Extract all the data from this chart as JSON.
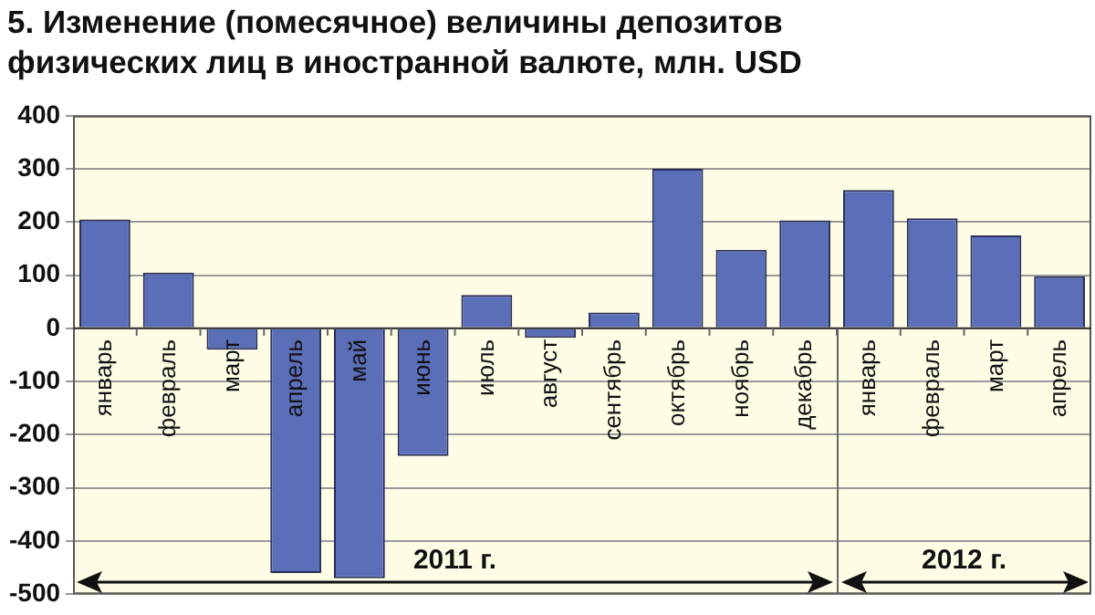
{
  "chart_data": {
    "type": "bar",
    "title": "5. Изменение (помесячное) величины депозитов физических лиц в иностранной валюте, млн. USD",
    "categories": [
      "январь",
      "февраль",
      "март",
      "апрель",
      "май",
      "июнь",
      "июль",
      "август",
      "сентябрь",
      "октябрь",
      "ноябрь",
      "декабрь",
      "январь",
      "февраль",
      "март",
      "апрель"
    ],
    "values": [
      205,
      105,
      -40,
      -460,
      -470,
      -240,
      63,
      -18,
      30,
      300,
      148,
      203,
      260,
      207,
      175,
      98
    ],
    "color": "#5b6fb8",
    "ylim": [
      -500,
      400
    ],
    "yticks": [
      -500,
      -400,
      -300,
      -200,
      -100,
      0,
      100,
      200,
      300,
      400
    ],
    "grid": "y",
    "legend": false,
    "annotations": [
      "2011 г.",
      "2012 г."
    ]
  }
}
